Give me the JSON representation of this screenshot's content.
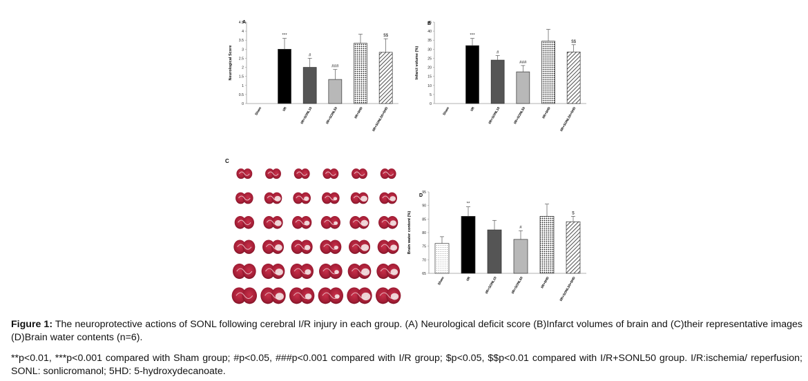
{
  "figure": {
    "caption_label": "Figure 1:",
    "caption_text": " The neuroprotective actions of SONL following cerebral I/R injury in each group. (A) Neurological deficit score (B)Infarct volumes of brain and (C)their representative images (D)Brain water contents (n=6).",
    "footnote": "**p<0.01, ***p<0.001 compared with Sham group; #p<0.05, ###p<0.001 compared with I/R group; $p<0.05, $$p<0.01 compared with I/R+SONL50 group. I/R:ischemia/ reperfusion; SONL: sonlicromanol; 5HD: 5-hydroxydecanoate."
  },
  "panel_c": {
    "letter": "C",
    "slices_shown": "6 columns x 6 rows of TTC-stained brain sections"
  },
  "chart_data": [
    {
      "id": "A",
      "type": "bar",
      "letter": "A",
      "title": "",
      "xlabel": "",
      "ylabel": "Neurological Score",
      "categories": [
        "Sham",
        "I/R",
        "I/R+SONL10",
        "I/R+SONL50",
        "I/R+5HD",
        "I/R+SONL50+5HD"
      ],
      "values": [
        0,
        3.0,
        2.0,
        1.33,
        3.33,
        2.83
      ],
      "errors": [
        0,
        0.6,
        0.5,
        0.55,
        0.5,
        0.75
      ],
      "annotations": [
        "",
        "***",
        "#",
        "###",
        "",
        "$$"
      ],
      "ylim": [
        0,
        4.5
      ],
      "yticks": [
        "0",
        "0.5",
        "1",
        "1.5",
        "2",
        "2.5",
        "3",
        "3.5",
        "4",
        "4.5"
      ],
      "bar_styles": [
        "none",
        "solid-black",
        "solid-darkgray",
        "solid-lightgray",
        "dotted",
        "hatched"
      ],
      "grid": false
    },
    {
      "id": "B",
      "type": "bar",
      "letter": "B",
      "title": "",
      "xlabel": "",
      "ylabel": "Infarct volume (%)",
      "categories": [
        "Sham",
        "I/R",
        "I/R+SONL10",
        "I/R+SONL50",
        "I/R+5HD",
        "I/R+SONL50+5HD"
      ],
      "values": [
        0,
        32,
        24,
        17.5,
        34.5,
        28.5
      ],
      "errors": [
        0,
        4,
        2.5,
        3.5,
        6.5,
        4
      ],
      "annotations": [
        "",
        "***",
        "#",
        "###",
        "",
        "$$"
      ],
      "ylim": [
        0,
        45
      ],
      "yticks": [
        "0",
        "5",
        "10",
        "15",
        "20",
        "25",
        "30",
        "35",
        "40",
        "45"
      ],
      "bar_styles": [
        "none",
        "solid-black",
        "solid-darkgray",
        "solid-lightgray",
        "dotted",
        "hatched"
      ],
      "grid": false
    },
    {
      "id": "D",
      "type": "bar",
      "letter": "D",
      "title": "",
      "xlabel": "",
      "ylabel": "Brain water content (%)",
      "categories": [
        "Sham",
        "I/R",
        "I/R+SONL10",
        "I/R+SONL50",
        "I/R+5HD",
        "I/R+SONL50+5HD"
      ],
      "values": [
        76,
        86,
        81,
        77.5,
        86,
        84
      ],
      "errors": [
        2.5,
        3.5,
        3.5,
        3.2,
        4.5,
        2
      ],
      "annotations": [
        "",
        "**",
        "",
        "#",
        "",
        "$"
      ],
      "ylim": [
        65,
        95
      ],
      "yticks": [
        "65",
        "70",
        "75",
        "80",
        "85",
        "90",
        "95"
      ],
      "bar_styles": [
        "dotted-light",
        "solid-black",
        "solid-darkgray",
        "solid-lightgray",
        "dotted",
        "hatched"
      ],
      "grid": false
    }
  ]
}
